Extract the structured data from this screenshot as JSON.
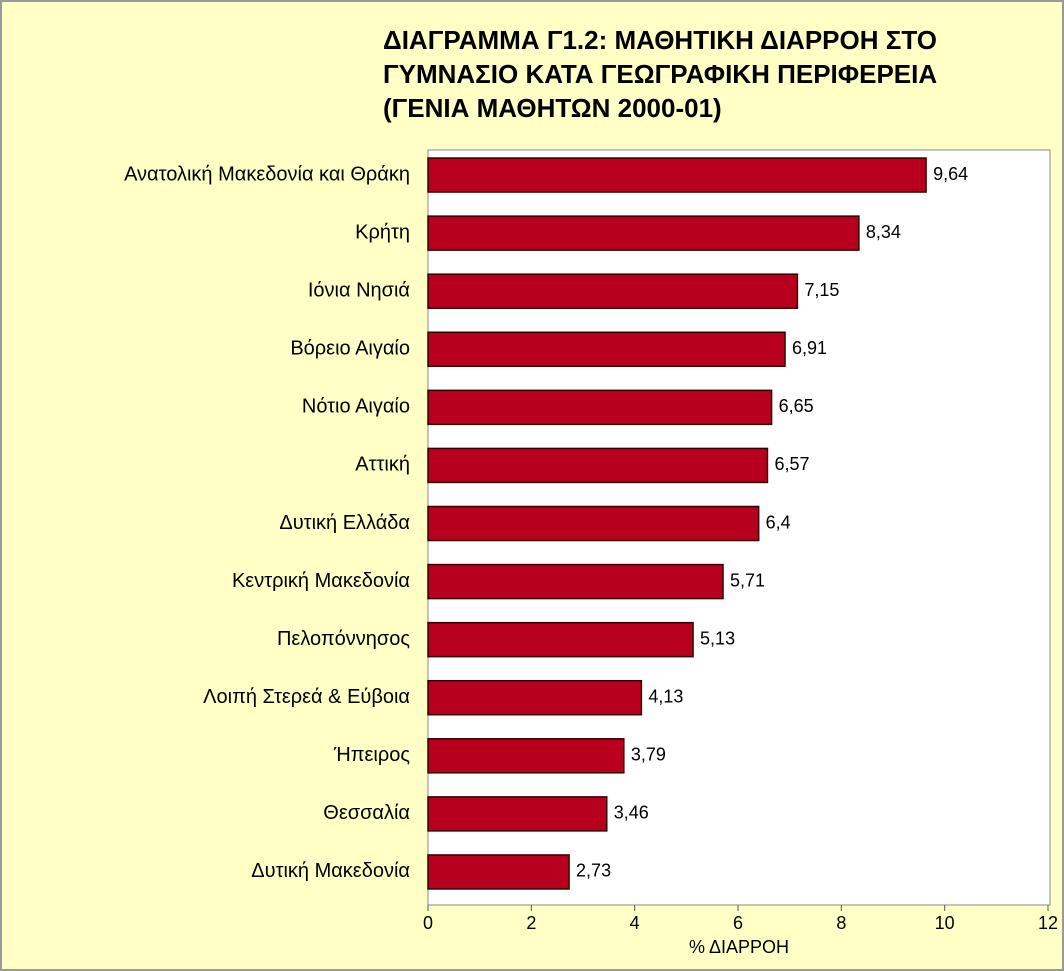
{
  "chart_data": {
    "type": "bar",
    "orientation": "horizontal",
    "title": [
      "ΔΙΑΓΡΑΜΜΑ Γ1.2: ΜΑΘΗΤΙΚΗ ΔΙΑΡΡΟΗ ΣΤΟ",
      "ΓΥΜΝΑΣΙΟ ΚΑΤΑ ΓΕΩΓΡΑΦΙΚΗ ΠΕΡΙΦΕΡΕΙΑ",
      "(ΓΕΝΙΑ ΜΑΘΗΤΩΝ 2000-01)"
    ],
    "x_label": "% ΔΙΑΡΡΟΗ",
    "categories": [
      "Ανατολική Μακεδονία και Θράκη",
      "Κρήτη",
      "Ιόνια Νησιά",
      "Βόρειο Αιγαίο",
      "Νότιο Αιγαίο",
      "Αττική",
      "Δυτική Ελλάδα",
      "Κεντρική Μακεδονία",
      "Πελοπόννησος",
      "Λοιπή Στερεά & Εύβοια",
      "Ήπειρος",
      "Θεσσαλία",
      "Δυτική Μακεδονία"
    ],
    "values": [
      9.64,
      8.34,
      7.15,
      6.91,
      6.65,
      6.57,
      6.4,
      5.71,
      5.13,
      4.13,
      3.79,
      3.46,
      2.73
    ],
    "value_labels": [
      "9,64",
      "8,34",
      "7,15",
      "6,91",
      "6,65",
      "6,57",
      "6,4",
      "5,71",
      "5,13",
      "4,13",
      "3,79",
      "3,46",
      "2,73"
    ],
    "color": "#b8001e",
    "xlim": [
      0,
      12
    ],
    "xticks": [
      0,
      2,
      4,
      6,
      8,
      10,
      12
    ],
    "grid": false
  }
}
